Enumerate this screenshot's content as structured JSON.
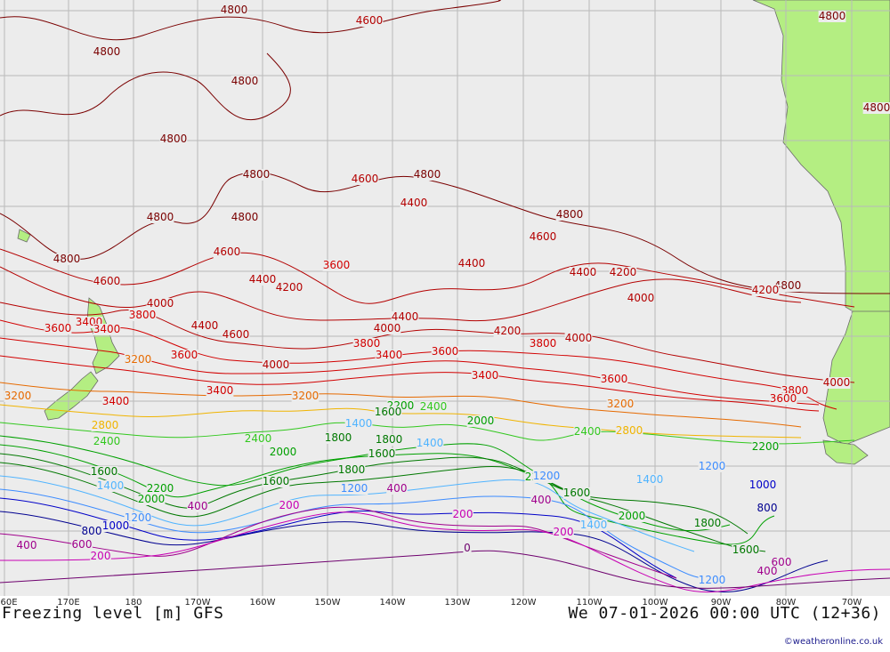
{
  "title": "Freezing level [m] GFS",
  "valid_time": "We 07-01-2026 00:00 UTC (12+36)",
  "credit": "©weatheronline.co.uk",
  "longitude_labels": [
    "60E",
    "170E",
    "180",
    "170W",
    "160W",
    "150W",
    "140W",
    "130W",
    "120W",
    "110W",
    "100W",
    "90W",
    "80W",
    "70W"
  ],
  "colors": {
    "ocean": "#ececec",
    "land": "#b4ee82",
    "grid": "#b9b9b9",
    "c4800": "#7a0000",
    "c4000": "#b40000",
    "c3600": "#d20000",
    "c3200": "#e66a00",
    "c2800": "#f0b400",
    "c2400": "#32c81e",
    "c2000": "#00a000",
    "c1600": "#007800",
    "c1400": "#50b4ff",
    "c1200": "#3c8cff",
    "c1000": "#0000c8",
    "c800": "#000090",
    "c400": "#a0008c",
    "c200": "#c800b4",
    "c0": "#6e006e"
  },
  "contour_labels": [
    {
      "text": "4800",
      "level": 4800
    },
    {
      "text": "4600",
      "level": 4600
    },
    {
      "text": "4400",
      "level": 4400
    },
    {
      "text": "4200",
      "level": 4200
    },
    {
      "text": "4000",
      "level": 4000
    },
    {
      "text": "3800",
      "level": 3800
    },
    {
      "text": "3600",
      "level": 3600
    },
    {
      "text": "3400",
      "level": 3400
    },
    {
      "text": "3200",
      "level": 3200
    },
    {
      "text": "2800",
      "level": 2800
    },
    {
      "text": "2400",
      "level": 2400
    },
    {
      "text": "2200",
      "level": 2200
    },
    {
      "text": "2000",
      "level": 2000
    },
    {
      "text": "1800",
      "level": 1800
    },
    {
      "text": "1600",
      "level": 1600
    },
    {
      "text": "1400",
      "level": 1400
    },
    {
      "text": "1200",
      "level": 1200
    },
    {
      "text": "1000",
      "level": 1000
    },
    {
      "text": "800",
      "level": 800
    },
    {
      "text": "600",
      "level": 600
    },
    {
      "text": "400",
      "level": 400
    },
    {
      "text": "200",
      "level": 200
    },
    {
      "text": "0",
      "level": 0
    }
  ]
}
